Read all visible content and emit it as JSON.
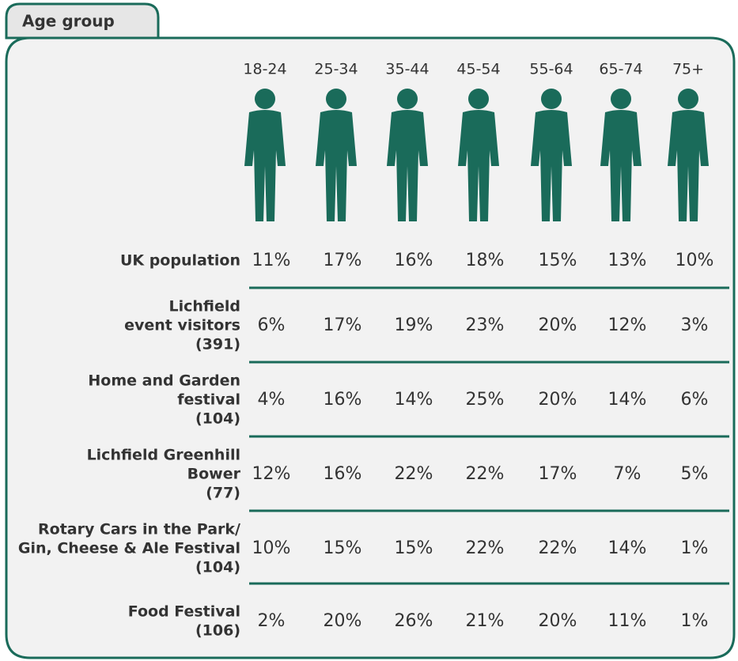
{
  "tab": "Age group",
  "columns": [
    "18-24",
    "25-34",
    "35-44",
    "45-54",
    "55-64",
    "65-74",
    "75+"
  ],
  "rows": [
    {
      "label": [
        "UK population"
      ],
      "cells": [
        "11%",
        "17%",
        "16%",
        "18%",
        "15%",
        "13%",
        "10%"
      ]
    },
    {
      "label": [
        "Lichfield",
        "event visitors",
        "(391)"
      ],
      "cells": [
        "6%",
        "17%",
        "19%",
        "23%",
        "20%",
        "12%",
        "3%"
      ]
    },
    {
      "label": [
        "Home and Garden",
        "festival",
        "(104)"
      ],
      "cells": [
        "4%",
        "16%",
        "14%",
        "25%",
        "20%",
        "14%",
        "6%"
      ]
    },
    {
      "label": [
        "Lichfield Greenhill",
        "Bower",
        "(77)"
      ],
      "cells": [
        "12%",
        "16%",
        "22%",
        "22%",
        "17%",
        "7%",
        "5%"
      ]
    },
    {
      "label": [
        "Rotary Cars in the Park/",
        "Gin, Cheese & Ale Festival",
        "(104)"
      ],
      "cells": [
        "10%",
        "15%",
        "15%",
        "22%",
        "22%",
        "14%",
        "1%"
      ]
    },
    {
      "label": [
        "Food Festival",
        "(106)"
      ],
      "cells": [
        "2%",
        "20%",
        "26%",
        "21%",
        "20%",
        "11%",
        "1%"
      ]
    }
  ]
}
